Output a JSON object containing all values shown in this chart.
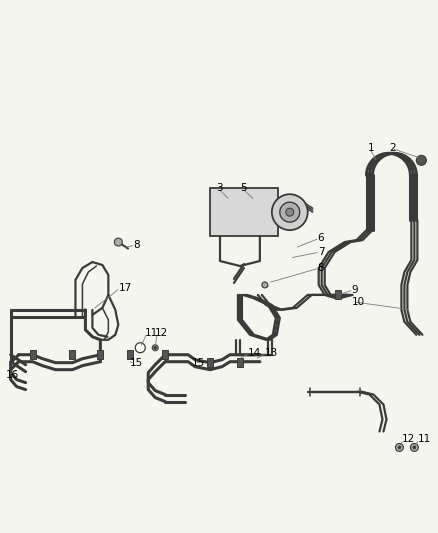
{
  "bg_color": "#f5f5f0",
  "line_color": "#3a3a3a",
  "label_color": "#000000",
  "figsize": [
    4.38,
    5.33
  ],
  "dpi": 100,
  "lw_thick": 2.2,
  "lw_med": 1.6,
  "lw_thin": 1.1
}
